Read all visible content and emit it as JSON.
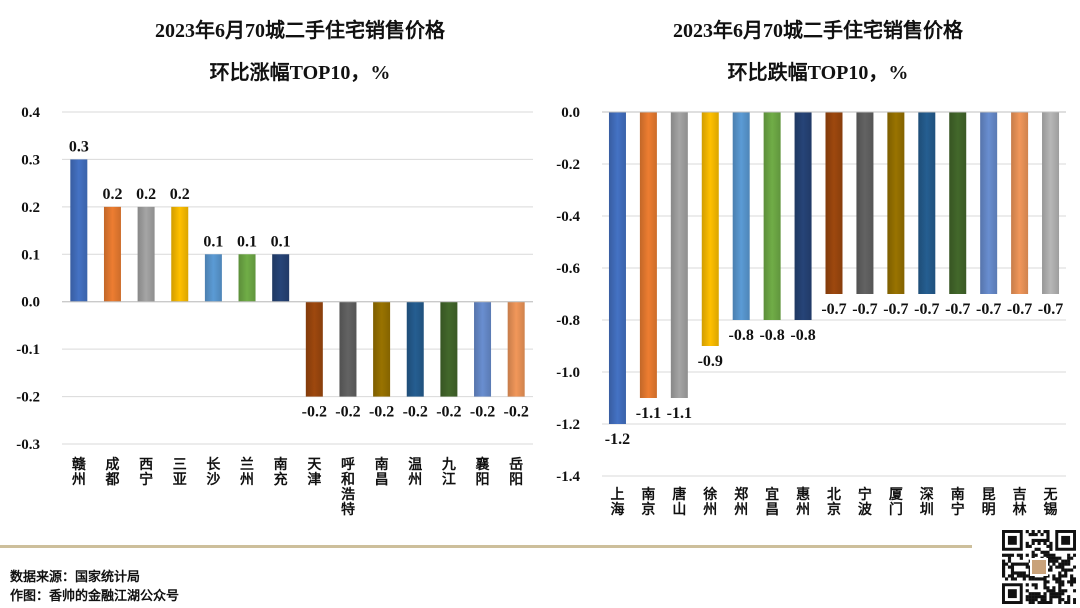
{
  "chart_data": [
    {
      "type": "bar",
      "title_lines": [
        "2023年6月70城二手住宅销售价格",
        "环比涨幅TOP10，%"
      ],
      "categories": [
        "赣州",
        "成都",
        "西宁",
        "三亚",
        "长沙",
        "兰州",
        "南充",
        "天津",
        "呼和浩特",
        "南昌",
        "温州",
        "九江",
        "襄阳",
        "岳阳"
      ],
      "values": [
        0.3,
        0.2,
        0.2,
        0.2,
        0.1,
        0.1,
        0.1,
        -0.2,
        -0.2,
        -0.2,
        -0.2,
        -0.2,
        -0.2,
        -0.2
      ],
      "data_labels": [
        "0.3",
        "0.2",
        "0.2",
        "0.2",
        "0.1",
        "0.1",
        "0.1",
        "-0.2",
        "-0.2",
        "-0.2",
        "-0.2",
        "-0.2",
        "-0.2",
        "-0.2"
      ],
      "ylim": [
        -0.3,
        0.4
      ],
      "yticks": [
        "0.4",
        "0.3",
        "0.2",
        "0.1",
        "0.0",
        "-0.1",
        "-0.2",
        "-0.3"
      ],
      "ytick_values": [
        0.4,
        0.3,
        0.2,
        0.1,
        0.0,
        -0.1,
        -0.2,
        -0.3
      ],
      "grid": true,
      "colors": [
        "#4472c4",
        "#ed7d31",
        "#a5a5a5",
        "#ffc000",
        "#5b9bd5",
        "#70ad47",
        "#264478",
        "#9e480e",
        "#636363",
        "#997300",
        "#255e91",
        "#43682b",
        "#698ed0",
        "#f1975a"
      ]
    },
    {
      "type": "bar",
      "title_lines": [
        "2023年6月70城二手住宅销售价格",
        "环比跌幅TOP10，%"
      ],
      "categories": [
        "上海",
        "南京",
        "唐山",
        "徐州",
        "郑州",
        "宜昌",
        "惠州",
        "北京",
        "宁波",
        "厦门",
        "深圳",
        "南宁",
        "昆明",
        "吉林",
        "无锡"
      ],
      "values": [
        -1.2,
        -1.1,
        -1.1,
        -0.9,
        -0.8,
        -0.8,
        -0.8,
        -0.7,
        -0.7,
        -0.7,
        -0.7,
        -0.7,
        -0.7,
        -0.7,
        -0.7
      ],
      "data_labels": [
        "-1.2",
        "-1.1",
        "-1.1",
        "-0.9",
        "-0.8",
        "-0.8",
        "-0.8",
        "-0.7",
        "-0.7",
        "-0.7",
        "-0.7",
        "-0.7",
        "-0.7",
        "-0.7",
        "-0.7"
      ],
      "ylim": [
        -1.4,
        0.0
      ],
      "yticks": [
        "0.0",
        "-0.2",
        "-0.4",
        "-0.6",
        "-0.8",
        "-1.0",
        "-1.2",
        "-1.4"
      ],
      "ytick_values": [
        0.0,
        -0.2,
        -0.4,
        -0.6,
        -0.8,
        -1.0,
        -1.2,
        -1.4
      ],
      "grid": true,
      "colors": [
        "#4472c4",
        "#ed7d31",
        "#a5a5a5",
        "#ffc000",
        "#5b9bd5",
        "#70ad47",
        "#264478",
        "#9e480e",
        "#636363",
        "#997300",
        "#255e91",
        "#43682b",
        "#698ed0",
        "#f1975a",
        "#b7b7b7"
      ]
    }
  ],
  "footer": {
    "source": "数据来源：国家统计局",
    "author": "作图：香帅的金融江湖公众号"
  }
}
